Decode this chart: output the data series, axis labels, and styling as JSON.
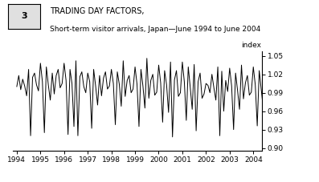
{
  "title_line1": "TRADING DAY FACTORS,",
  "title_line2": "Short-term visitor arrivals, Japan—June 1994 to June 2004",
  "chart_number": "3",
  "ylabel": "index",
  "ylim": [
    0.895,
    1.058
  ],
  "yticks": [
    0.9,
    0.93,
    0.96,
    0.99,
    1.02,
    1.05
  ],
  "ytick_labels": [
    "0.90",
    "0.93",
    "0.96",
    "0.99",
    "1.02",
    "1.05"
  ],
  "xlim_start": 1993.83,
  "xlim_end": 2004.35,
  "xtick_positions": [
    1994,
    1995,
    1996,
    1997,
    1998,
    1999,
    2000,
    2001,
    2002,
    2003,
    2004
  ],
  "xtick_labels": [
    "1994",
    "1995",
    "1996",
    "1997",
    "1998",
    "1999",
    "2000",
    "2001",
    "2002",
    "2003",
    "2004"
  ],
  "line_color": "#000000",
  "line_width": 0.7,
  "background_color": "#ffffff",
  "values": [
    1.0,
    1.018,
    0.995,
    1.012,
    1.001,
    0.985,
    1.028,
    0.92,
    1.015,
    1.022,
    1.003,
    0.993,
    1.038,
    1.008,
    0.925,
    1.032,
    1.003,
    0.978,
    1.022,
    0.988,
    1.018,
    1.028,
    0.998,
    1.005,
    1.038,
    1.01,
    0.922,
    1.028,
    1.005,
    0.935,
    1.042,
    0.92,
    1.016,
    1.024,
    1.0,
    0.99,
    1.022,
    1.008,
    0.932,
    1.028,
    1.001,
    0.97,
    1.018,
    0.985,
    1.014,
    1.024,
    0.996,
    1.001,
    1.028,
    1.005,
    0.938,
    1.024,
    1.004,
    0.968,
    1.042,
    0.984,
    1.01,
    1.018,
    0.99,
    0.996,
    1.032,
    1.004,
    0.935,
    1.028,
    1.001,
    0.965,
    1.046,
    0.981,
    1.01,
    1.02,
    0.986,
    0.991,
    1.035,
    1.006,
    0.942,
    1.026,
    1.003,
    0.958,
    1.04,
    0.918,
    1.011,
    1.026,
    0.984,
    0.99,
    1.04,
    1.008,
    0.945,
    1.032,
    0.999,
    0.963,
    1.036,
    0.928,
    1.008,
    1.022,
    0.981,
    0.988,
    1.005,
    1.002,
    0.99,
    1.02,
    0.998,
    0.978,
    1.032,
    0.92,
    1.025,
    0.96,
    1.01,
    0.992,
    1.03,
    1.001,
    0.93,
    1.022,
    0.994,
    0.963,
    1.035,
    0.98,
    1.006,
    1.018,
    0.986,
    0.991,
    1.032,
    1.003,
    0.936,
    1.026,
    0.996,
    0.966,
    1.038
  ]
}
